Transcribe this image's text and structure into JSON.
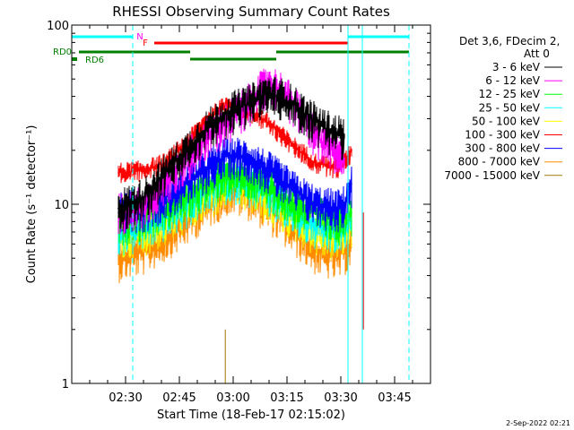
{
  "chart_data": {
    "type": "line",
    "title": "RHESSI Observing Summary Count Rates",
    "xlabel": "Start Time (18-Feb-17 02:15:02)",
    "ylabel": "Count Rate (s⁻¹ detector⁻¹)",
    "yscale": "log",
    "ylim": [
      1,
      100
    ],
    "xlim_minutes_after_0215": [
      0,
      100
    ],
    "x_ticks": [
      {
        "t": 15,
        "label": "02:30"
      },
      {
        "t": 30,
        "label": "02:45"
      },
      {
        "t": 45,
        "label": "03:00"
      },
      {
        "t": 60,
        "label": "03:15"
      },
      {
        "t": 75,
        "label": "03:30"
      },
      {
        "t": 90,
        "label": "03:45"
      }
    ],
    "y_ticks": [
      {
        "v": 1,
        "label": "1"
      },
      {
        "v": 10,
        "label": "10"
      },
      {
        "v": 100,
        "label": "100"
      }
    ],
    "legend": {
      "position": "right",
      "header": [
        "Det 3,6, FDecim 2,",
        "Att 0"
      ],
      "entries": [
        {
          "label": "3 - 6 keV",
          "color": "#000000"
        },
        {
          "label": "6 - 12 keV",
          "color": "#ff00ff"
        },
        {
          "label": "12 - 25 keV",
          "color": "#00ff00"
        },
        {
          "label": "25 - 50 keV",
          "color": "#00ffff"
        },
        {
          "label": "50 - 100 keV",
          "color": "#ffff00"
        },
        {
          "label": "100 - 300 keV",
          "color": "#ff0000"
        },
        {
          "label": "300 - 800 keV",
          "color": "#0000ff"
        },
        {
          "label": "800 - 7000 keV",
          "color": "#ff8c00"
        },
        {
          "label": "7000 - 15000 keV",
          "color": "#a07800"
        }
      ]
    },
    "series": [
      {
        "name": "3 - 6 keV",
        "color": "#000000",
        "x": [
          13,
          20,
          26,
          32,
          38,
          44,
          50,
          54,
          58,
          62,
          66,
          70,
          74,
          76
        ],
        "y": [
          9.5,
          11,
          15,
          20,
          27,
          33,
          37,
          42,
          40,
          36,
          31,
          27,
          25,
          24
        ]
      },
      {
        "name": "6 - 12 keV",
        "color": "#ff00ff",
        "x": [
          13,
          20,
          26,
          32,
          38,
          44,
          50,
          53,
          55,
          58,
          62,
          66,
          70,
          74,
          76
        ],
        "y": [
          9,
          10,
          13,
          18,
          24,
          30,
          38,
          44,
          48,
          44,
          36,
          28,
          22,
          19,
          18
        ]
      },
      {
        "name": "100 - 300 keV",
        "color": "#ff0000",
        "x": [
          13,
          20,
          26,
          32,
          38,
          44,
          50,
          56,
          62,
          68,
          74,
          76,
          78
        ],
        "y": [
          15,
          15.5,
          17,
          22,
          30,
          37,
          33,
          27,
          21,
          17,
          16,
          17,
          20
        ]
      },
      {
        "name": "300 - 800 keV",
        "color": "#0000ff",
        "x": [
          13,
          20,
          26,
          32,
          38,
          44,
          50,
          56,
          62,
          68,
          74,
          76,
          78
        ],
        "y": [
          9.5,
          9.5,
          11,
          13,
          16,
          19,
          18,
          15,
          12,
          10,
          9.5,
          10,
          13
        ]
      },
      {
        "name": "12 - 25 keV",
        "color": "#00ff00",
        "x": [
          13,
          20,
          26,
          32,
          38,
          44,
          50,
          56,
          62,
          68,
          74,
          78
        ],
        "y": [
          8,
          8.5,
          9.5,
          11,
          13,
          15,
          14,
          12,
          10,
          9,
          8,
          9
        ]
      },
      {
        "name": "25 - 50 keV",
        "color": "#00ffff",
        "x": [
          13,
          20,
          26,
          32,
          38,
          44,
          50,
          56,
          62,
          68,
          74,
          78
        ],
        "y": [
          7,
          7.5,
          8.5,
          10,
          12,
          14,
          13,
          11,
          9,
          7.5,
          7,
          8
        ]
      },
      {
        "name": "50 - 100 keV",
        "color": "#ffff00",
        "x": [
          13,
          20,
          26,
          32,
          38,
          44,
          50,
          56,
          62,
          68,
          74,
          78
        ],
        "y": [
          6.5,
          7,
          8,
          9.5,
          11,
          13,
          12,
          10,
          8.5,
          7,
          6.5,
          7.5
        ]
      },
      {
        "name": "800 - 7000 keV",
        "color": "#ff8c00",
        "x": [
          13,
          20,
          26,
          32,
          38,
          44,
          50,
          56,
          62,
          68,
          74,
          78
        ],
        "y": [
          5,
          5.5,
          6.5,
          8,
          10,
          12,
          11,
          9,
          7,
          5.5,
          5,
          6
        ]
      }
    ],
    "flag_bars": [
      {
        "label": "N",
        "color": "#00ffff",
        "segments": [
          [
            0,
            17
          ],
          [
            77,
            94
          ]
        ]
      },
      {
        "label": "F",
        "color": "#ff0000",
        "segments": [
          [
            23,
            77
          ]
        ]
      },
      {
        "label": "RD0",
        "color": "#008000",
        "segments": [
          [
            2,
            33
          ],
          [
            57,
            77
          ],
          [
            77,
            94
          ]
        ]
      },
      {
        "label": "RD6",
        "color": "#008000",
        "segments": [
          [
            33,
            57
          ]
        ]
      }
    ],
    "vertical_markers": [
      {
        "t": 17,
        "color": "#00ffff",
        "style": "dashed"
      },
      {
        "t": 77,
        "color": "#00ffff",
        "style": "solid"
      },
      {
        "t": 81,
        "color": "#00ffff",
        "style": "solid"
      },
      {
        "t": 94,
        "color": "#00ffff",
        "style": "dashed"
      }
    ],
    "timestamp": "2-Sep-2022 02:21"
  }
}
